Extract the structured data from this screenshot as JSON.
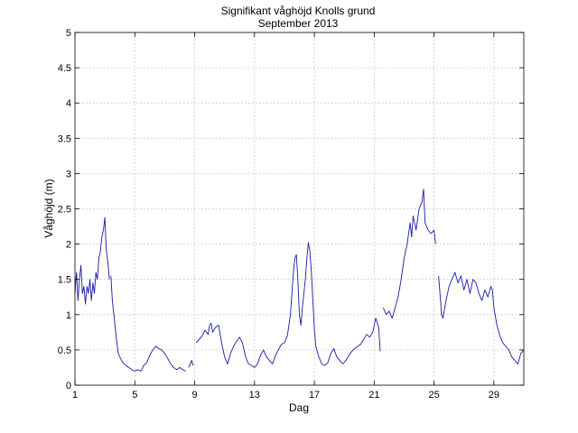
{
  "chart_data": {
    "type": "line",
    "title": "Signifikant våghöjd Knolls grund",
    "subtitle": "September 2013",
    "xlabel": "Dag",
    "ylabel": "Våghöjd (m)",
    "xlim": [
      1,
      31
    ],
    "ylim": [
      0,
      5
    ],
    "xticks": [
      1,
      5,
      9,
      13,
      17,
      21,
      25,
      29
    ],
    "xtick_labels": [
      "1",
      "5",
      "9",
      "13",
      "17",
      "21",
      "25",
      "29"
    ],
    "yticks": [
      0,
      0.5,
      1,
      1.5,
      2,
      2.5,
      3,
      3.5,
      4,
      4.5,
      5
    ],
    "ytick_labels": [
      "0",
      "0.5",
      "1",
      "1.5",
      "2",
      "2.5",
      "3",
      "3.5",
      "4",
      "4.5",
      "5"
    ],
    "grid": true,
    "line_color": "#1a1aa6",
    "series": [
      {
        "segments": [
          [
            [
              1.0,
              1.3
            ],
            [
              1.1,
              1.6
            ],
            [
              1.2,
              1.2
            ],
            [
              1.3,
              1.5
            ],
            [
              1.4,
              1.7
            ],
            [
              1.5,
              1.3
            ],
            [
              1.6,
              1.4
            ],
            [
              1.7,
              1.15
            ],
            [
              1.8,
              1.4
            ],
            [
              1.9,
              1.3
            ],
            [
              2.0,
              1.5
            ],
            [
              2.1,
              1.2
            ],
            [
              2.2,
              1.45
            ],
            [
              2.3,
              1.3
            ],
            [
              2.4,
              1.6
            ],
            [
              2.5,
              1.5
            ],
            [
              2.6,
              1.8
            ],
            [
              2.7,
              1.9
            ],
            [
              2.8,
              2.1
            ],
            [
              2.9,
              2.2
            ],
            [
              3.0,
              2.38
            ],
            [
              3.05,
              2.1
            ],
            [
              3.1,
              1.9
            ],
            [
              3.2,
              1.75
            ],
            [
              3.3,
              1.5
            ]
          ],
          [
            [
              3.4,
              1.55
            ],
            [
              3.5,
              1.2
            ],
            [
              3.6,
              1.0
            ],
            [
              3.7,
              0.8
            ],
            [
              3.8,
              0.6
            ],
            [
              3.9,
              0.45
            ],
            [
              4.0,
              0.4
            ],
            [
              4.2,
              0.32
            ],
            [
              4.4,
              0.28
            ],
            [
              4.6,
              0.25
            ],
            [
              4.8,
              0.22
            ],
            [
              5.0,
              0.2
            ],
            [
              5.2,
              0.22
            ],
            [
              5.4,
              0.2
            ],
            [
              5.6,
              0.28
            ],
            [
              5.8,
              0.32
            ],
            [
              6.0,
              0.42
            ],
            [
              6.2,
              0.5
            ],
            [
              6.4,
              0.55
            ],
            [
              6.6,
              0.52
            ],
            [
              6.8,
              0.5
            ],
            [
              7.0,
              0.45
            ],
            [
              7.2,
              0.38
            ],
            [
              7.4,
              0.3
            ],
            [
              7.6,
              0.25
            ],
            [
              7.8,
              0.22
            ],
            [
              8.0,
              0.25
            ],
            [
              8.2,
              0.22
            ],
            [
              8.4,
              0.2
            ]
          ],
          [
            [
              8.6,
              0.25
            ],
            [
              8.8,
              0.35
            ],
            [
              8.9,
              0.28
            ]
          ],
          [
            [
              9.1,
              0.6
            ],
            [
              9.3,
              0.65
            ],
            [
              9.5,
              0.7
            ],
            [
              9.7,
              0.78
            ],
            [
              9.9,
              0.72
            ],
            [
              10.0,
              0.85
            ],
            [
              10.1,
              0.88
            ],
            [
              10.2,
              0.75
            ],
            [
              10.4,
              0.82
            ],
            [
              10.6,
              0.85
            ],
            [
              10.8,
              0.6
            ],
            [
              11.0,
              0.4
            ],
            [
              11.2,
              0.3
            ],
            [
              11.4,
              0.45
            ],
            [
              11.6,
              0.55
            ],
            [
              11.8,
              0.62
            ],
            [
              12.0,
              0.68
            ],
            [
              12.2,
              0.6
            ],
            [
              12.4,
              0.4
            ],
            [
              12.6,
              0.3
            ],
            [
              12.8,
              0.28
            ],
            [
              13.0,
              0.25
            ],
            [
              13.2,
              0.3
            ],
            [
              13.4,
              0.42
            ],
            [
              13.6,
              0.5
            ],
            [
              13.8,
              0.4
            ],
            [
              14.0,
              0.35
            ],
            [
              14.2,
              0.3
            ],
            [
              14.4,
              0.42
            ],
            [
              14.6,
              0.5
            ],
            [
              14.8,
              0.58
            ],
            [
              15.0,
              0.6
            ],
            [
              15.2,
              0.7
            ],
            [
              15.4,
              1.0
            ],
            [
              15.5,
              1.3
            ],
            [
              15.6,
              1.6
            ],
            [
              15.7,
              1.8
            ],
            [
              15.8,
              1.85
            ],
            [
              15.9,
              1.5
            ],
            [
              16.0,
              1.0
            ],
            [
              16.1,
              0.85
            ],
            [
              16.2,
              1.1
            ],
            [
              16.4,
              1.5
            ],
            [
              16.5,
              1.8
            ],
            [
              16.6,
              2.02
            ],
            [
              16.7,
              1.9
            ],
            [
              16.8,
              1.6
            ],
            [
              16.9,
              1.2
            ],
            [
              17.0,
              0.8
            ],
            [
              17.1,
              0.55
            ],
            [
              17.3,
              0.4
            ],
            [
              17.5,
              0.3
            ],
            [
              17.7,
              0.28
            ],
            [
              17.9,
              0.32
            ],
            [
              18.1,
              0.45
            ],
            [
              18.3,
              0.52
            ],
            [
              18.5,
              0.4
            ],
            [
              18.7,
              0.35
            ],
            [
              18.9,
              0.3
            ],
            [
              19.1,
              0.35
            ],
            [
              19.3,
              0.42
            ],
            [
              19.5,
              0.48
            ],
            [
              19.7,
              0.52
            ],
            [
              19.9,
              0.55
            ],
            [
              20.1,
              0.58
            ],
            [
              20.3,
              0.65
            ],
            [
              20.5,
              0.72
            ],
            [
              20.7,
              0.68
            ],
            [
              20.9,
              0.75
            ],
            [
              21.1,
              0.95
            ],
            [
              21.3,
              0.82
            ],
            [
              21.4,
              0.48
            ]
          ],
          [
            [
              21.6,
              1.1
            ],
            [
              21.8,
              1.0
            ],
            [
              22.0,
              1.05
            ],
            [
              22.2,
              0.95
            ],
            [
              22.4,
              1.1
            ],
            [
              22.6,
              1.25
            ],
            [
              22.8,
              1.5
            ],
            [
              23.0,
              1.8
            ],
            [
              23.2,
              2.0
            ],
            [
              23.4,
              2.3
            ],
            [
              23.5,
              2.1
            ],
            [
              23.6,
              2.4
            ],
            [
              23.8,
              2.2
            ],
            [
              24.0,
              2.5
            ],
            [
              24.2,
              2.6
            ],
            [
              24.3,
              2.78
            ],
            [
              24.4,
              2.3
            ],
            [
              24.6,
              2.2
            ],
            [
              24.8,
              2.15
            ],
            [
              25.0,
              2.2
            ],
            [
              25.1,
              2.0
            ]
          ],
          [
            [
              25.3,
              1.55
            ],
            [
              25.4,
              1.3
            ],
            [
              25.5,
              1.0
            ],
            [
              25.6,
              0.95
            ],
            [
              25.8,
              1.2
            ],
            [
              26.0,
              1.4
            ],
            [
              26.2,
              1.5
            ],
            [
              26.4,
              1.6
            ],
            [
              26.6,
              1.45
            ],
            [
              26.8,
              1.55
            ],
            [
              27.0,
              1.35
            ],
            [
              27.2,
              1.5
            ],
            [
              27.4,
              1.3
            ],
            [
              27.6,
              1.5
            ],
            [
              27.8,
              1.45
            ],
            [
              28.0,
              1.3
            ],
            [
              28.2,
              1.2
            ],
            [
              28.4,
              1.35
            ],
            [
              28.6,
              1.25
            ],
            [
              28.8,
              1.4
            ],
            [
              28.9,
              1.35
            ],
            [
              29.0,
              1.1
            ],
            [
              29.2,
              0.85
            ],
            [
              29.4,
              0.7
            ],
            [
              29.6,
              0.6
            ],
            [
              29.8,
              0.55
            ],
            [
              30.0,
              0.5
            ],
            [
              30.2,
              0.4
            ],
            [
              30.4,
              0.35
            ],
            [
              30.6,
              0.3
            ],
            [
              30.8,
              0.45
            ],
            [
              31.0,
              0.5
            ]
          ]
        ]
      }
    ]
  }
}
